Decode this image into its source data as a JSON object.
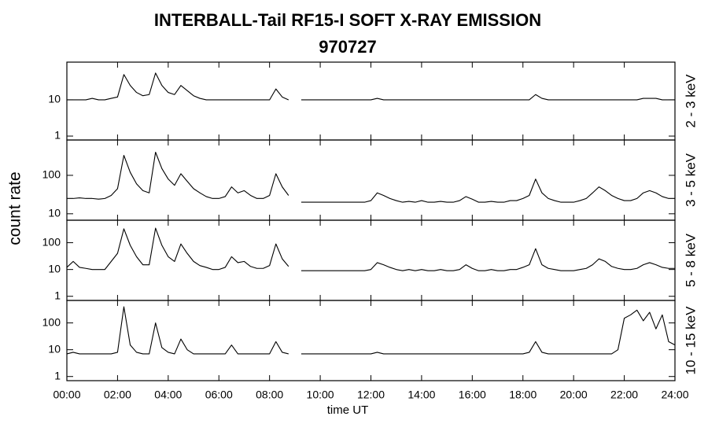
{
  "chart_data": [
    {
      "type": "line",
      "title": "INTERBALL-Tail RF15-I SOFT X-RAY EMISSION",
      "subtitle": "970727",
      "ylabel": "count rate",
      "label": "2 - 3 keV",
      "log_y": true,
      "color": "#000000",
      "x": [
        0,
        0.25,
        0.5,
        0.75,
        1,
        1.25,
        1.5,
        1.75,
        2,
        2.25,
        2.5,
        2.75,
        3,
        3.25,
        3.5,
        3.75,
        4,
        4.25,
        4.5,
        4.75,
        5,
        5.25,
        5.5,
        5.75,
        6,
        6.25,
        6.5,
        6.75,
        7,
        7.25,
        7.5,
        7.75,
        8,
        8.25,
        8.5,
        8.75,
        9,
        9.25,
        9.5,
        9.75,
        10,
        10.25,
        10.5,
        10.75,
        11,
        11.25,
        11.5,
        11.75,
        12,
        12.25,
        12.5,
        12.75,
        13,
        13.25,
        13.5,
        13.75,
        14,
        14.25,
        14.5,
        14.75,
        15,
        15.25,
        15.5,
        15.75,
        16,
        16.25,
        16.5,
        16.75,
        17,
        17.25,
        17.5,
        17.75,
        18,
        18.25,
        18.5,
        18.75,
        19,
        19.25,
        19.5,
        19.75,
        20,
        20.25,
        20.5,
        20.75,
        21,
        21.25,
        21.5,
        21.75,
        22,
        22.25,
        22.5,
        22.75,
        23,
        23.25,
        23.5,
        23.75,
        24
      ],
      "values": [
        10,
        10,
        10,
        10,
        11,
        10,
        10,
        11,
        12,
        50,
        25,
        16,
        13,
        14,
        55,
        25,
        16,
        14,
        25,
        18,
        13,
        11,
        10,
        10,
        10,
        10,
        10,
        10,
        10,
        10,
        10,
        10,
        10,
        20,
        12,
        10,
        null,
        10,
        10,
        10,
        10,
        10,
        10,
        10,
        10,
        10,
        10,
        10,
        10,
        11,
        10,
        10,
        10,
        10,
        10,
        10,
        10,
        10,
        10,
        10,
        10,
        10,
        10,
        10,
        10,
        10,
        10,
        10,
        10,
        10,
        10,
        10,
        10,
        10,
        14,
        11,
        10,
        10,
        10,
        10,
        10,
        10,
        10,
        10,
        10,
        10,
        10,
        10,
        10,
        10,
        10,
        11,
        11,
        11,
        10,
        10,
        10
      ],
      "xlim": [
        0,
        24
      ],
      "xticks": [
        0,
        2,
        4,
        6,
        8,
        10,
        12,
        14,
        16,
        18,
        20,
        22,
        24
      ],
      "ylim": [
        0.78,
        110
      ],
      "yticks": [
        1,
        10
      ]
    },
    {
      "type": "line",
      "label": "3 - 5 keV",
      "log_y": true,
      "color": "#000000",
      "x": [
        0,
        0.25,
        0.5,
        0.75,
        1,
        1.25,
        1.5,
        1.75,
        2,
        2.25,
        2.5,
        2.75,
        3,
        3.25,
        3.5,
        3.75,
        4,
        4.25,
        4.5,
        4.75,
        5,
        5.25,
        5.5,
        5.75,
        6,
        6.25,
        6.5,
        6.75,
        7,
        7.25,
        7.5,
        7.75,
        8,
        8.25,
        8.5,
        8.75,
        9,
        9.25,
        9.5,
        9.75,
        10,
        10.25,
        10.5,
        10.75,
        11,
        11.25,
        11.5,
        11.75,
        12,
        12.25,
        12.5,
        12.75,
        13,
        13.25,
        13.5,
        13.75,
        14,
        14.25,
        14.5,
        14.75,
        15,
        15.25,
        15.5,
        15.75,
        16,
        16.25,
        16.5,
        16.75,
        17,
        17.25,
        17.5,
        17.75,
        18,
        18.25,
        18.5,
        18.75,
        19,
        19.25,
        19.5,
        19.75,
        20,
        20.25,
        20.5,
        20.75,
        21,
        21.25,
        21.5,
        21.75,
        22,
        22.25,
        22.5,
        22.75,
        23,
        23.25,
        23.5,
        23.75,
        24
      ],
      "values": [
        25,
        25,
        26,
        25,
        25,
        24,
        25,
        30,
        45,
        330,
        120,
        60,
        40,
        35,
        400,
        150,
        80,
        55,
        110,
        70,
        45,
        35,
        28,
        25,
        25,
        28,
        50,
        35,
        40,
        30,
        25,
        25,
        30,
        110,
        50,
        30,
        null,
        20,
        20,
        20,
        20,
        20,
        20,
        20,
        20,
        20,
        20,
        20,
        22,
        35,
        30,
        25,
        22,
        20,
        21,
        20,
        22,
        20,
        20,
        21,
        20,
        20,
        22,
        28,
        24,
        20,
        20,
        21,
        20,
        20,
        22,
        22,
        25,
        30,
        80,
        35,
        25,
        22,
        20,
        20,
        20,
        22,
        25,
        35,
        50,
        40,
        30,
        25,
        22,
        22,
        25,
        35,
        40,
        35,
        28,
        25,
        25
      ],
      "xlim": [
        0,
        24
      ],
      "xticks": [
        0,
        2,
        4,
        6,
        8,
        10,
        12,
        14,
        16,
        18,
        20,
        22,
        24
      ],
      "ylim": [
        6.8,
        830
      ],
      "yticks": [
        10,
        100
      ]
    },
    {
      "type": "line",
      "label": "5 - 8 keV",
      "log_y": true,
      "color": "#000000",
      "x": [
        0,
        0.25,
        0.5,
        0.75,
        1,
        1.25,
        1.5,
        1.75,
        2,
        2.25,
        2.5,
        2.75,
        3,
        3.25,
        3.5,
        3.75,
        4,
        4.25,
        4.5,
        4.75,
        5,
        5.25,
        5.5,
        5.75,
        6,
        6.25,
        6.5,
        6.75,
        7,
        7.25,
        7.5,
        7.75,
        8,
        8.25,
        8.5,
        8.75,
        9,
        9.25,
        9.5,
        9.75,
        10,
        10.25,
        10.5,
        10.75,
        11,
        11.25,
        11.5,
        11.75,
        12,
        12.25,
        12.5,
        12.75,
        13,
        13.25,
        13.5,
        13.75,
        14,
        14.25,
        14.5,
        14.75,
        15,
        15.25,
        15.5,
        15.75,
        16,
        16.25,
        16.5,
        16.75,
        17,
        17.25,
        17.5,
        17.75,
        18,
        18.25,
        18.5,
        18.75,
        19,
        19.25,
        19.5,
        19.75,
        20,
        20.25,
        20.5,
        20.75,
        21,
        21.25,
        21.5,
        21.75,
        22,
        22.25,
        22.5,
        22.75,
        23,
        23.25,
        23.5,
        23.75,
        24
      ],
      "values": [
        12,
        20,
        12,
        11,
        10,
        10,
        10,
        20,
        40,
        330,
        80,
        30,
        15,
        15,
        350,
        80,
        30,
        20,
        90,
        40,
        20,
        14,
        12,
        10,
        10,
        12,
        30,
        18,
        20,
        13,
        11,
        11,
        14,
        90,
        25,
        13,
        null,
        9,
        9,
        9,
        9,
        9,
        9,
        9,
        9,
        9,
        9,
        9,
        10,
        18,
        15,
        12,
        10,
        9,
        10,
        9,
        10,
        9,
        9,
        10,
        9,
        9,
        10,
        15,
        11,
        9,
        9,
        10,
        9,
        9,
        10,
        10,
        12,
        15,
        60,
        15,
        11,
        10,
        9,
        9,
        9,
        10,
        11,
        15,
        25,
        20,
        13,
        11,
        10,
        10,
        11,
        15,
        18,
        15,
        12,
        11,
        11
      ],
      "xlim": [
        0,
        24
      ],
      "xticks": [
        0,
        2,
        4,
        6,
        8,
        10,
        12,
        14,
        16,
        18,
        20,
        22,
        24
      ],
      "ylim": [
        0.7,
        690
      ],
      "yticks": [
        1,
        10,
        100
      ]
    },
    {
      "type": "line",
      "label": "10 - 15 keV",
      "xlabel": "time UT",
      "log_y": true,
      "color": "#000000",
      "x": [
        0,
        0.25,
        0.5,
        0.75,
        1,
        1.25,
        1.5,
        1.75,
        2,
        2.25,
        2.5,
        2.75,
        3,
        3.25,
        3.5,
        3.75,
        4,
        4.25,
        4.5,
        4.75,
        5,
        5.25,
        5.5,
        5.75,
        6,
        6.25,
        6.5,
        6.75,
        7,
        7.25,
        7.5,
        7.75,
        8,
        8.25,
        8.5,
        8.75,
        9,
        9.25,
        9.5,
        9.75,
        10,
        10.25,
        10.5,
        10.75,
        11,
        11.25,
        11.5,
        11.75,
        12,
        12.25,
        12.5,
        12.75,
        13,
        13.25,
        13.5,
        13.75,
        14,
        14.25,
        14.5,
        14.75,
        15,
        15.25,
        15.5,
        15.75,
        16,
        16.25,
        16.5,
        16.75,
        17,
        17.25,
        17.5,
        17.75,
        18,
        18.25,
        18.5,
        18.75,
        19,
        19.25,
        19.5,
        19.75,
        20,
        20.25,
        20.5,
        20.75,
        21,
        21.25,
        21.5,
        21.75,
        22,
        22.25,
        22.5,
        22.75,
        23,
        23.25,
        23.5,
        23.75,
        24
      ],
      "values": [
        7,
        8,
        7,
        7,
        7,
        7,
        7,
        7,
        8,
        400,
        15,
        8,
        7,
        7,
        100,
        12,
        8,
        7,
        25,
        10,
        7,
        7,
        7,
        7,
        7,
        7,
        15,
        7,
        7,
        7,
        7,
        7,
        7,
        20,
        8,
        7,
        null,
        7,
        7,
        7,
        7,
        7,
        7,
        7,
        7,
        7,
        7,
        7,
        7,
        8,
        7,
        7,
        7,
        7,
        7,
        7,
        7,
        7,
        7,
        7,
        7,
        7,
        7,
        7,
        7,
        7,
        7,
        7,
        7,
        7,
        7,
        7,
        7,
        8,
        20,
        8,
        7,
        7,
        7,
        7,
        7,
        7,
        7,
        7,
        7,
        7,
        7,
        10,
        150,
        200,
        300,
        120,
        250,
        60,
        200,
        20,
        15
      ],
      "xlim": [
        0,
        24
      ],
      "xticks": [
        {
          "value": 0,
          "label": "00:00"
        },
        {
          "value": 2,
          "label": "02:00"
        },
        {
          "value": 4,
          "label": "04:00"
        },
        {
          "value": 6,
          "label": "06:00"
        },
        {
          "value": 8,
          "label": "08:00"
        },
        {
          "value": 10,
          "label": "10:00"
        },
        {
          "value": 12,
          "label": "12:00"
        },
        {
          "value": 14,
          "label": "14:00"
        },
        {
          "value": 16,
          "label": "16:00"
        },
        {
          "value": 18,
          "label": "18:00"
        },
        {
          "value": 20,
          "label": "20:00"
        },
        {
          "value": 22,
          "label": "22:00"
        },
        {
          "value": 24,
          "label": "24:00"
        }
      ],
      "ylim": [
        0.7,
        690
      ],
      "yticks": [
        1,
        10,
        100
      ]
    }
  ]
}
